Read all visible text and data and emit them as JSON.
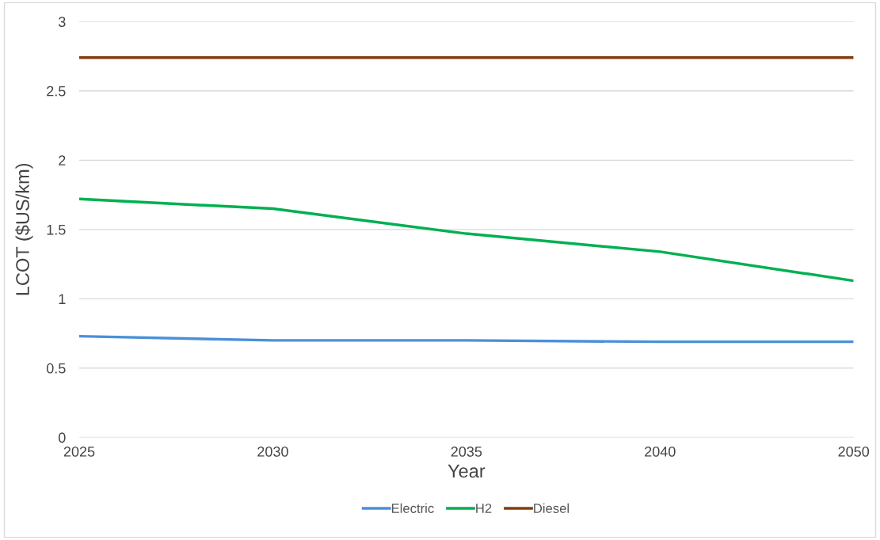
{
  "chart_data": {
    "type": "line",
    "xlabel": "Year",
    "ylabel": "LCOT ($US/km)",
    "categories": [
      "2025",
      "2030",
      "2035",
      "2040",
      "2050"
    ],
    "series": [
      {
        "name": "Electric",
        "color": "#4a90d9",
        "values": [
          0.73,
          0.7,
          0.7,
          0.69,
          0.69
        ]
      },
      {
        "name": "H2",
        "color": "#00b050",
        "values": [
          1.72,
          1.65,
          1.47,
          1.34,
          1.13
        ]
      },
      {
        "name": "Diesel",
        "color": "#843c0c",
        "values": [
          2.74,
          2.74,
          2.74,
          2.74,
          2.74
        ]
      }
    ],
    "ylim": [
      0,
      3
    ],
    "yticks": [
      0,
      0.5,
      1,
      1.5,
      2,
      2.5,
      3
    ],
    "grid": "y",
    "legend": "bottom",
    "marker": "none",
    "line_style": "solid"
  }
}
